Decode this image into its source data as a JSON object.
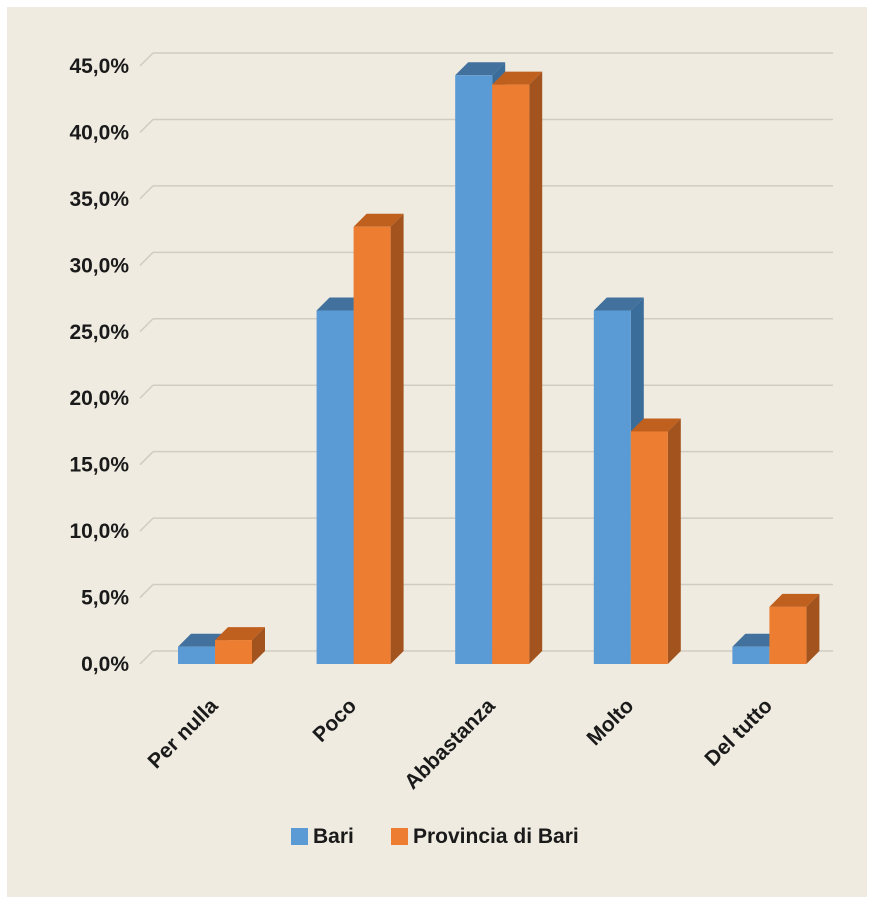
{
  "chart_data": {
    "type": "bar",
    "categories": [
      "Per nulla",
      "Poco",
      "Abbastanza",
      "Molto",
      "Del tutto"
    ],
    "series": [
      {
        "name": "Bari",
        "values": [
          1.3,
          26.6,
          44.3,
          26.6,
          1.3
        ],
        "color": "#5b9bd5",
        "side_color": "#3b6d9a",
        "top_color": "#41719c"
      },
      {
        "name": "Provincia di Bari",
        "values": [
          1.8,
          32.9,
          43.6,
          17.5,
          4.3
        ],
        "color": "#ed7d31",
        "side_color": "#a3531d",
        "top_color": "#c0601f"
      }
    ],
    "ylim": [
      0,
      45
    ],
    "yticks": [
      0,
      5,
      10,
      15,
      20,
      25,
      30,
      35,
      40,
      45
    ],
    "ytick_labels": [
      "0,0%",
      "5,0%",
      "10,0%",
      "15,0%",
      "20,0%",
      "25,0%",
      "30,0%",
      "35,0%",
      "40,0%",
      "45,0%"
    ],
    "grid": true,
    "legend": "bottom",
    "title": "",
    "xlabel": "",
    "ylabel": ""
  },
  "colors": {
    "background": "#efebe1",
    "gridline": "#d0ccc2"
  }
}
